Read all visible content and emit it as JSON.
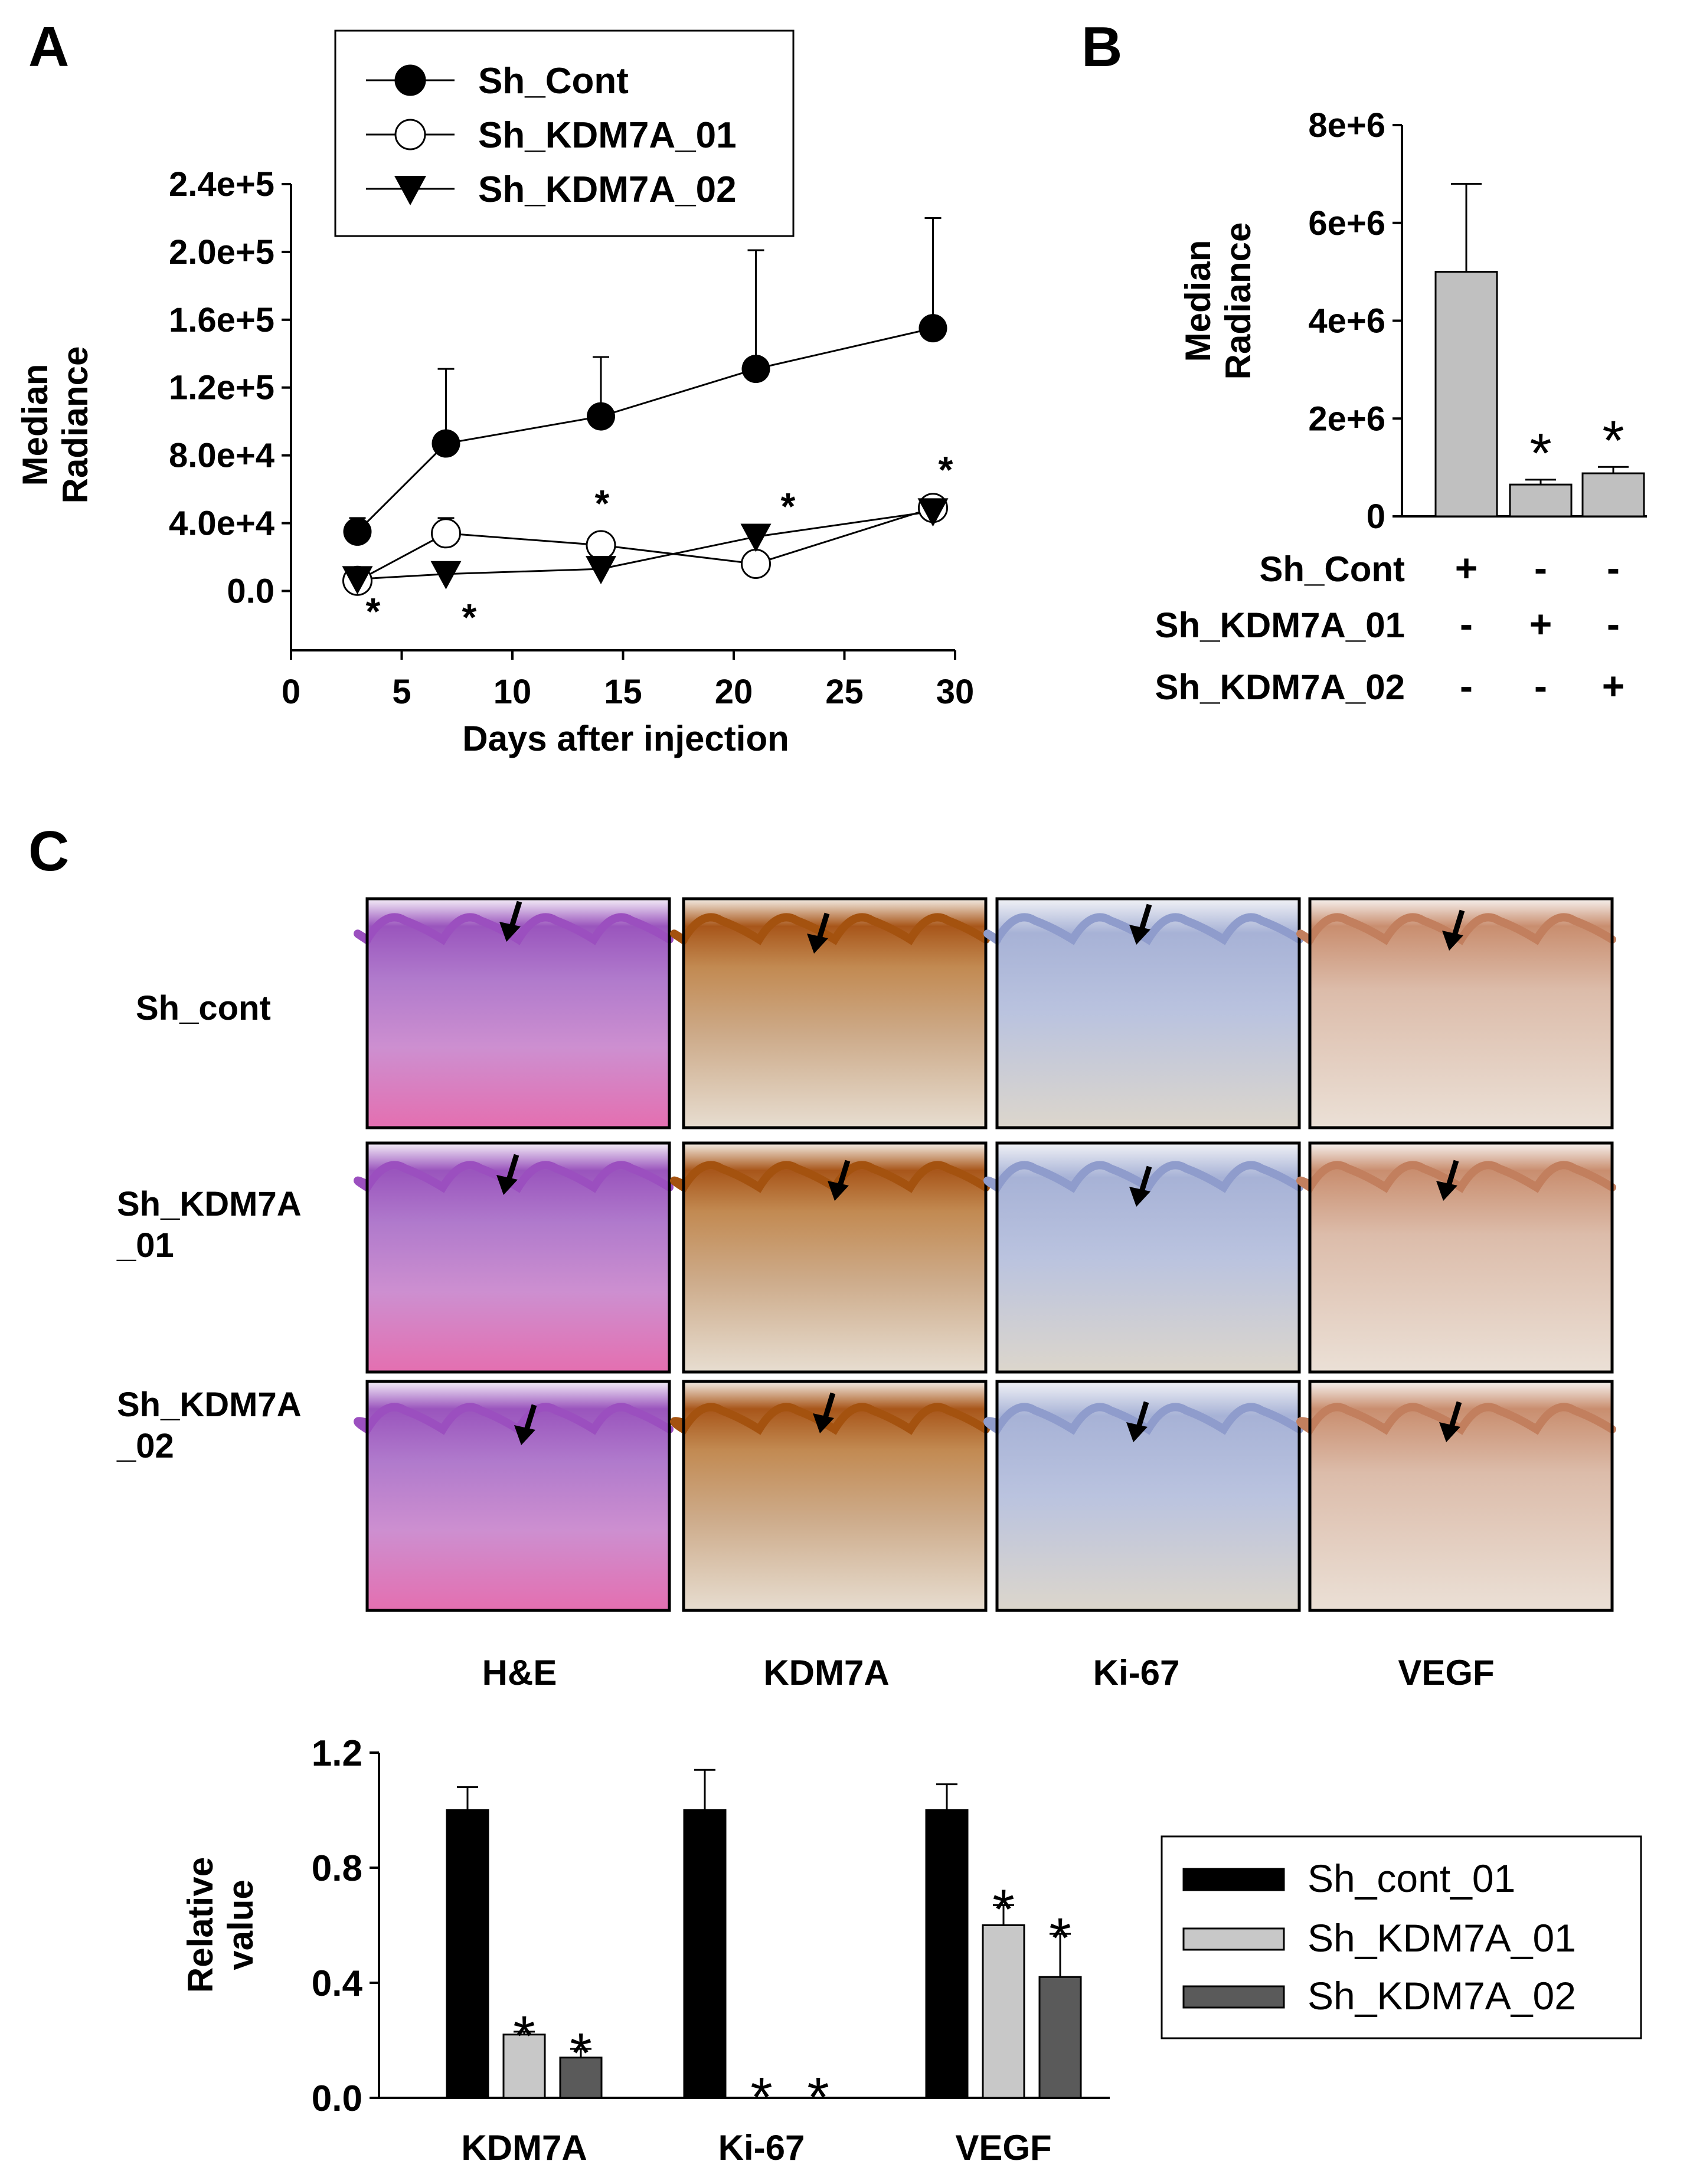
{
  "panels": {
    "a": "A",
    "b": "B",
    "c": "C"
  },
  "colors": {
    "sh_cont": "#000000",
    "sh_kdm7a_01": "#c8c8c8",
    "sh_kdm7a_02": "#5a5a5a",
    "bar_gray": "#c0c0c0",
    "he_pink": "#d98fcf",
    "he_purple": "#a55fc0",
    "dab_brown": "#b5651d",
    "ki67_blue": "#b7c3df",
    "vegf_tan": "#e6cfc2"
  },
  "chart_data": [
    {
      "id": "A",
      "type": "line",
      "title": "",
      "xlabel": "Days after injection",
      "ylabel_lines": [
        "Median",
        "Radiance"
      ],
      "xlim": [
        0,
        30
      ],
      "ylim": [
        -35000,
        240000
      ],
      "x_ticks": [
        "0",
        "5",
        "10",
        "15",
        "20",
        "25",
        "30"
      ],
      "y_ticks": [
        {
          "label": "0.0",
          "value": 0
        },
        {
          "label": "4.0e+4",
          "value": 40000
        },
        {
          "label": "8.0e+4",
          "value": 80000
        },
        {
          "label": "1.2e+5",
          "value": 120000
        },
        {
          "label": "1.6e+5",
          "value": 160000
        },
        {
          "label": "2.0e+5",
          "value": 200000
        },
        {
          "label": "2.4e+5",
          "value": 240000
        }
      ],
      "x": [
        3,
        7,
        14,
        21,
        29
      ],
      "series": [
        {
          "name": "Sh_Cont",
          "marker": "filled-circle",
          "values": [
            35000,
            87000,
            103000,
            131000,
            155000
          ],
          "errors": [
            8000,
            44000,
            35000,
            70000,
            65000
          ]
        },
        {
          "name": "Sh_KDM7A_01",
          "marker": "open-circle",
          "values": [
            6000,
            34000,
            27000,
            16000,
            49000
          ],
          "errors": [
            3000,
            9000,
            4000,
            5000,
            4000
          ]
        },
        {
          "name": "Sh_KDM7A_02",
          "marker": "filled-triangle",
          "values": [
            7000,
            10000,
            13000,
            32000,
            47000
          ],
          "errors": [
            2000,
            3000,
            3000,
            5000,
            6000
          ]
        }
      ],
      "legend": [
        "Sh_Cont",
        "Sh_KDM7A_01",
        "Sh_KDM7A_02"
      ],
      "legend_position": "top-center",
      "significance": "*"
    },
    {
      "id": "B",
      "type": "bar",
      "ylabel_lines": [
        "Median",
        "Radiance"
      ],
      "ylim": [
        0,
        8000000
      ],
      "y_ticks": [
        {
          "label": "0",
          "value": 0
        },
        {
          "label": "2e+6",
          "value": 2000000
        },
        {
          "label": "4e+6",
          "value": 4000000
        },
        {
          "label": "6e+6",
          "value": 6000000
        },
        {
          "label": "8e+6",
          "value": 8000000
        }
      ],
      "values": [
        5000000,
        650000,
        880000
      ],
      "errors": [
        1800000,
        100000,
        130000
      ],
      "significance": [
        "",
        "*",
        "*"
      ],
      "condition_table": {
        "rows": [
          {
            "label": "Sh_Cont",
            "marks": [
              "+",
              "-",
              "-"
            ]
          },
          {
            "label": "Sh_KDM7A_01",
            "marks": [
              "-",
              "+",
              "-"
            ]
          },
          {
            "label": "Sh_KDM7A_02",
            "marks": [
              "-",
              "-",
              "+"
            ]
          }
        ]
      }
    },
    {
      "id": "C-bar",
      "type": "bar",
      "ylabel_lines": [
        "Relative",
        "value"
      ],
      "ylim": [
        0,
        1.2
      ],
      "y_ticks": [
        {
          "label": "0.0",
          "value": 0
        },
        {
          "label": "0.4",
          "value": 0.4
        },
        {
          "label": "0.8",
          "value": 0.8
        },
        {
          "label": "1.2",
          "value": 1.2
        }
      ],
      "categories": [
        "KDM7A",
        "Ki-67",
        "VEGF"
      ],
      "series": [
        {
          "name": "Sh_cont_01",
          "values": [
            1.0,
            1.0,
            1.0
          ],
          "errors": [
            0.08,
            0.14,
            0.09
          ]
        },
        {
          "name": "Sh_KDM7A_01",
          "values": [
            0.22,
            0.0,
            0.6
          ],
          "errors": [
            0.01,
            0.0,
            0.07
          ]
        },
        {
          "name": "Sh_KDM7A_02",
          "values": [
            0.14,
            0.0,
            0.42
          ],
          "errors": [
            0.03,
            0.0,
            0.15
          ]
        }
      ],
      "significance": [
        [
          "",
          "*",
          "*"
        ],
        [
          "",
          "*",
          "*"
        ],
        [
          "",
          "*",
          "*"
        ]
      ],
      "legend_position": "right"
    }
  ],
  "histology": {
    "row_labels": [
      [
        "Sh_cont"
      ],
      [
        "Sh_KDM7A",
        "_01"
      ],
      [
        "Sh_KDM7A",
        "_02"
      ]
    ],
    "column_labels": [
      "H&E",
      "KDM7A",
      "Ki-67",
      "VEGF"
    ]
  }
}
